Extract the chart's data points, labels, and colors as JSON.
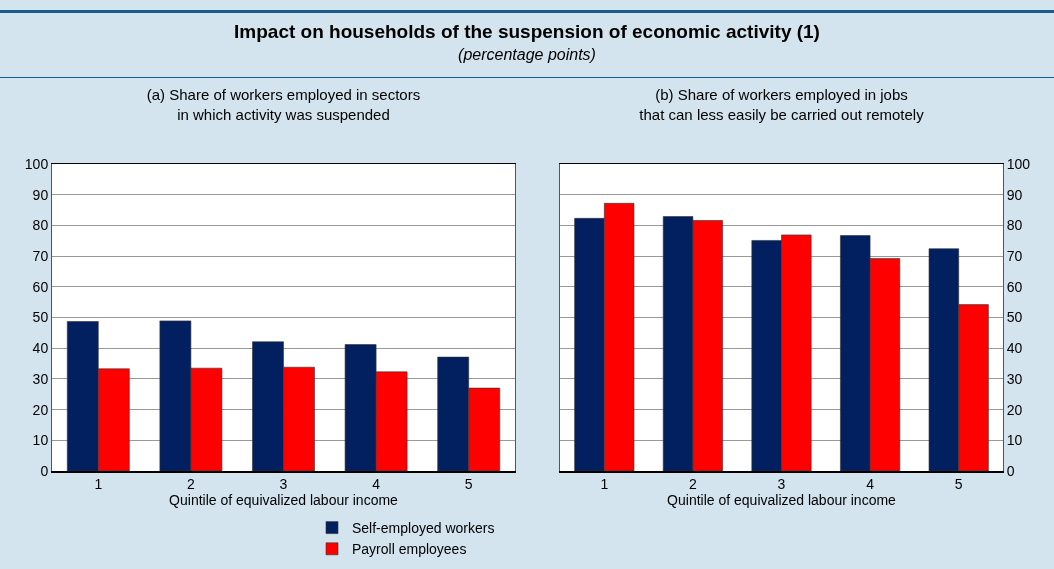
{
  "chart_data": [
    {
      "type": "bar",
      "title": "(a) Share of workers employed in sectors\nin which activity was suspended",
      "annotations": [
        "Impact on households of the suspension of economic activity (1)",
        "(percentage points)"
      ],
      "xlabel": "Quintile of equivalized labour income",
      "categories": [
        "1",
        "2",
        "3",
        "4",
        "5"
      ],
      "series": [
        {
          "name": "Self-employed workers",
          "color": "#022060",
          "values": [
            48.7,
            48.9,
            42.1,
            41.2,
            37.1
          ]
        },
        {
          "name": "Payroll employees",
          "color": "#ff0000",
          "values": [
            33.3,
            33.5,
            33.8,
            32.3,
            27.0
          ]
        }
      ],
      "ylim": [
        0,
        100
      ],
      "yticks": [
        0,
        10,
        20,
        30,
        40,
        50,
        60,
        70,
        80,
        90,
        100
      ],
      "grid": "y",
      "legend": "bottom"
    },
    {
      "type": "bar",
      "title": "(b) Share of workers employed in jobs\nthat can less easily be carried out remotely",
      "xlabel": "Quintile of equivalized labour income",
      "categories": [
        "1",
        "2",
        "3",
        "4",
        "5"
      ],
      "series": [
        {
          "color": "#022060",
          "values": [
            82.3,
            82.9,
            75.1,
            76.7,
            72.4
          ]
        },
        {
          "color": "#ff0000",
          "values": [
            87.2,
            81.6,
            76.9,
            69.2,
            54.2
          ]
        }
      ],
      "ylim": [
        0,
        100
      ],
      "yticks": [
        0,
        10,
        20,
        30,
        40,
        50,
        60,
        70,
        80,
        90,
        100
      ],
      "grid": "y"
    }
  ]
}
